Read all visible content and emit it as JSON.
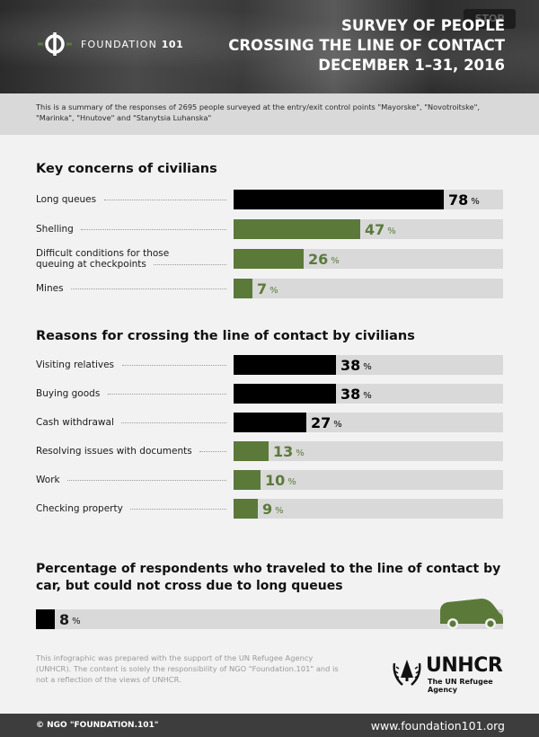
{
  "header": {
    "logo_name": "FOUNDATION",
    "logo_number": "101",
    "title_line1": "SURVEY OF PEOPLE",
    "title_line2": "CROSSING THE LINE OF CONTACT",
    "title_line3": "DECEMBER 1–31, 2016",
    "sign_text": "STOP"
  },
  "summary": "This is a summary of the responses of 2695 people surveyed at the entry/exit control points \"Mayorske\", \"Novotroitske\", \"Marinka\", \"Hnutove\" and \"Stanytsia Luhanska\"",
  "colors": {
    "black": "#000000",
    "green": "#5b7a3a",
    "track": "#d9d9d9"
  },
  "chart_data": [
    {
      "type": "bar",
      "title": "Key concerns of civilians",
      "unit": "%",
      "xlim": [
        0,
        100
      ],
      "categories": [
        "Long queues",
        "Shelling",
        "Difficult conditions for those queuing at checkpoints",
        "Mines"
      ],
      "values": [
        78,
        47,
        26,
        7
      ],
      "colors": [
        "black",
        "green",
        "green",
        "green"
      ]
    },
    {
      "type": "bar",
      "title": "Reasons for crossing the line of contact by civilians",
      "unit": "%",
      "xlim": [
        0,
        100
      ],
      "categories": [
        "Visiting relatives",
        "Buying goods",
        "Cash withdrawal",
        "Resolving issues with documents",
        "Work",
        "Checking property"
      ],
      "values": [
        38,
        38,
        27,
        13,
        10,
        9
      ],
      "colors": [
        "black",
        "black",
        "black",
        "green",
        "green",
        "green"
      ]
    },
    {
      "type": "bar",
      "title": "Percentage of respondents who traveled to the line of contact by car, but could not cross due to long queues",
      "unit": "%",
      "xlim": [
        0,
        100
      ],
      "categories": [
        ""
      ],
      "values": [
        8
      ],
      "colors": [
        "black"
      ]
    }
  ],
  "disclaimer": "This infographic was prepared with the support of the UN Refugee Agency (UNHCR). The content is solely the responsibility of NGO \"Foundation.101\" and is not a reflection of the views of UNHCR.",
  "unhcr": {
    "name": "UNHCR",
    "subtitle": "The UN Refugee Agency"
  },
  "footer": {
    "copyright": "© NGO \"FOUNDATION.101\"",
    "url": "www.foundation101.org"
  }
}
